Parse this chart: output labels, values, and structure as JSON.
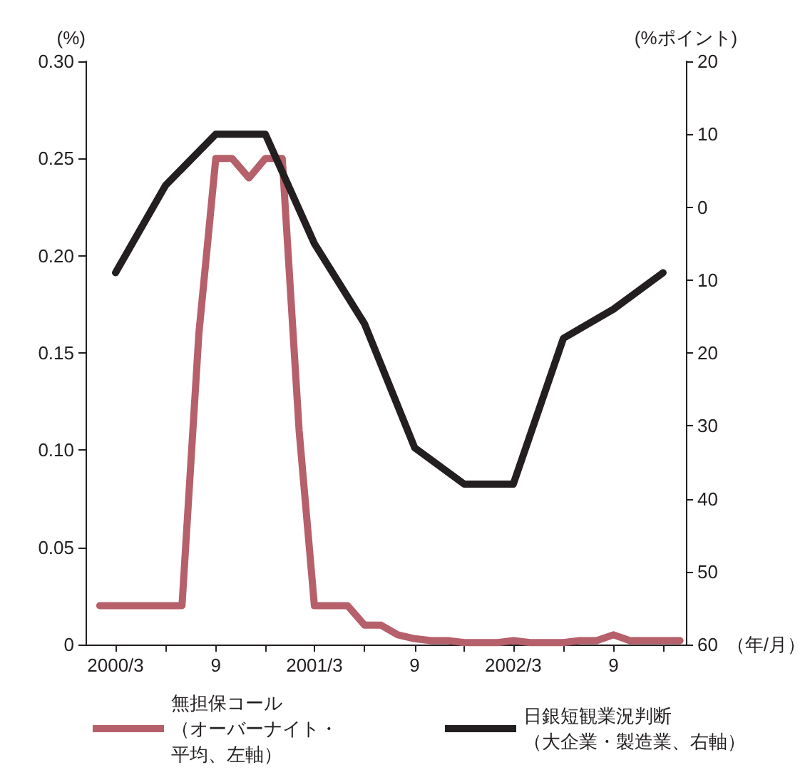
{
  "chart_data": {
    "type": "line",
    "ylabel": "(%)",
    "y2label": "(%ポイント)",
    "xlabel": "（年/月）",
    "xlim": [
      "2000-01-06",
      "2003-01-12"
    ],
    "xticks": [
      {
        "value": "2000-03",
        "label": "2000/3"
      },
      {
        "value": "2000-06",
        "label": null
      },
      {
        "value": "2000-09",
        "label": "9"
      },
      {
        "value": "2000-12",
        "label": null
      },
      {
        "value": "2001-03",
        "label": "2001/3"
      },
      {
        "value": "2001-06",
        "label": null
      },
      {
        "value": "2001-09",
        "label": "9"
      },
      {
        "value": "2001-12",
        "label": null
      },
      {
        "value": "2002-03",
        "label": "2002/3"
      },
      {
        "value": "2002-06",
        "label": null
      },
      {
        "value": "2002-09",
        "label": "9"
      },
      {
        "value": "2002-12",
        "label": null
      }
    ],
    "ylim": [
      0,
      0.3
    ],
    "yticks": [
      0,
      0.05,
      {
        "value": 0.1,
        "label": "0.10"
      },
      0.15,
      {
        "value": 0.2,
        "label": "0.20"
      },
      0.25,
      {
        "value": 0.3,
        "label": "0.30"
      }
    ],
    "y2lim": [
      -60,
      20
    ],
    "y2ticks": [
      20,
      10,
      0,
      {
        "value": -10,
        "label": "10"
      },
      {
        "value": -20,
        "label": "20"
      },
      {
        "value": -30,
        "label": "30"
      },
      {
        "value": -40,
        "label": "40"
      },
      {
        "value": -50,
        "label": "50"
      },
      {
        "value": -60,
        "label": "60"
      }
    ],
    "grid": false,
    "legend": "bottom",
    "marker": "none",
    "line_style": "solid",
    "series": [
      {
        "name": "無担保コール（オーバーナイト・平均、左軸）",
        "color": "#b5606a",
        "x": [
          "2000-02",
          "2000-03",
          "2000-04",
          "2000-05",
          "2000-06",
          "2000-07",
          "2000-08",
          "2000-09",
          "2000-10",
          "2000-11",
          "2000-12",
          "2001-01",
          "2001-02",
          "2001-03",
          "2001-04",
          "2001-05",
          "2001-06",
          "2001-07",
          "2001-08",
          "2001-09",
          "2001-10",
          "2001-11",
          "2001-12",
          "2002-01",
          "2002-02",
          "2002-03",
          "2002-04",
          "2002-05",
          "2002-06",
          "2002-07",
          "2002-08",
          "2002-09",
          "2002-10",
          "2002-11",
          "2002-12",
          "2003-01"
        ],
        "values": [
          0.02,
          0.02,
          0.02,
          0.02,
          0.02,
          0.02,
          0.16,
          0.25,
          0.25,
          0.24,
          0.25,
          0.25,
          0.11,
          0.02,
          0.02,
          0.02,
          0.01,
          0.01,
          0.005,
          0.003,
          0.002,
          0.002,
          0.001,
          0.001,
          0.001,
          0.002,
          0.001,
          0.001,
          0.001,
          0.002,
          0.002,
          0.005,
          0.002,
          0.002,
          0.002,
          0.002
        ]
      },
      {
        "name": "日銀短観業況判断（大企業・製造業、右軸）",
        "color": "#231f20",
        "axis": "y2",
        "x": [
          "2000-03",
          "2000-06",
          "2000-09",
          "2000-12",
          "2001-03",
          "2001-06",
          "2001-09",
          "2001-12",
          "2002-03",
          "2002-06",
          "2002-09",
          "2002-12"
        ],
        "values": [
          -9,
          3,
          10,
          10,
          -5,
          -16,
          -33,
          -38,
          -38,
          -18,
          -14,
          -9
        ]
      }
    ]
  }
}
